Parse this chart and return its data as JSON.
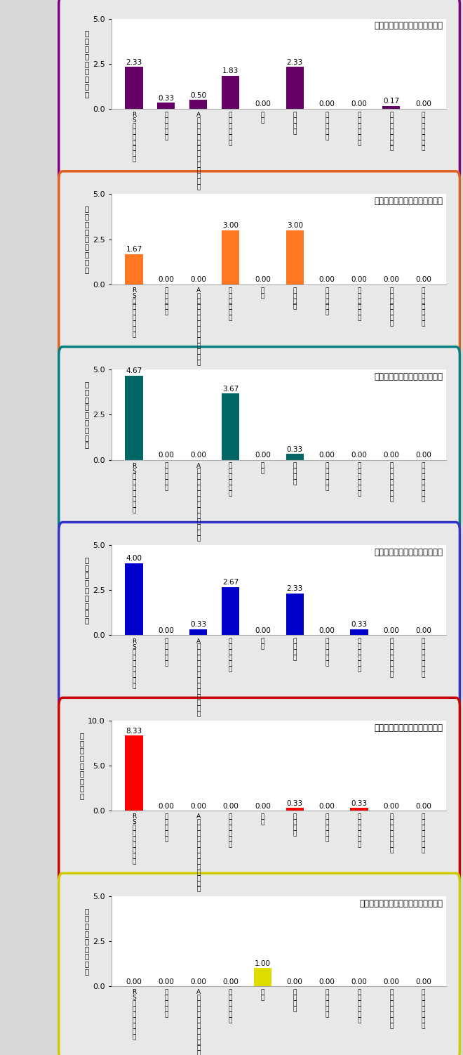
{
  "panels": [
    {
      "title": "北区の疾患別定点当たり報告数",
      "border_color": "#800080",
      "bar_color": "#660066",
      "ylim": 5.0,
      "yticks": [
        0.0,
        2.5,
        5.0
      ],
      "ytick_labels": [
        "0.0",
        "2.5",
        "5.0"
      ],
      "values": [
        2.33,
        0.33,
        0.5,
        1.83,
        0.0,
        2.33,
        0.0,
        0.0,
        0.17,
        0.0
      ]
    },
    {
      "title": "堺区の疾患別定点当たり報告数",
      "border_color": "#E06020",
      "bar_color": "#FF7722",
      "ylim": 5.0,
      "yticks": [
        0.0,
        2.5,
        5.0
      ],
      "ytick_labels": [
        "0.0",
        "2.5",
        "5.0"
      ],
      "values": [
        1.67,
        0.0,
        0.0,
        3.0,
        0.0,
        3.0,
        0.0,
        0.0,
        0.0,
        0.0
      ]
    },
    {
      "title": "西区の疾患別定点当たり報告数",
      "border_color": "#008080",
      "bar_color": "#006666",
      "ylim": 5.0,
      "yticks": [
        0.0,
        2.5,
        5.0
      ],
      "ytick_labels": [
        "0.0",
        "2.5",
        "5.0"
      ],
      "values": [
        4.67,
        0.0,
        0.0,
        3.67,
        0.0,
        0.33,
        0.0,
        0.0,
        0.0,
        0.0
      ]
    },
    {
      "title": "中区の疾患別定点当たり報告数",
      "border_color": "#3333CC",
      "bar_color": "#0000CC",
      "ylim": 5.0,
      "yticks": [
        0.0,
        2.5,
        5.0
      ],
      "ytick_labels": [
        "0.0",
        "2.5",
        "5.0"
      ],
      "values": [
        4.0,
        0.0,
        0.33,
        2.67,
        0.0,
        2.33,
        0.0,
        0.33,
        0.0,
        0.0
      ]
    },
    {
      "title": "南区の疾患別定点当たり報告数",
      "border_color": "#CC0000",
      "bar_color": "#FF0000",
      "ylim": 10.0,
      "yticks": [
        0.0,
        5.0,
        10.0
      ],
      "ytick_labels": [
        "0.0",
        "5.0",
        "10.0"
      ],
      "values": [
        8.33,
        0.0,
        0.0,
        0.0,
        0.0,
        0.33,
        0.0,
        0.33,
        0.0,
        0.0
      ]
    },
    {
      "title": "東・美原区の疾患別定点当たり報告数",
      "border_color": "#CCCC00",
      "bar_color": "#DDDD00",
      "ylim": 5.0,
      "yticks": [
        0.0,
        2.5,
        5.0
      ],
      "ytick_labels": [
        "0.0",
        "2.5",
        "5.0"
      ],
      "values": [
        0.0,
        0.0,
        0.0,
        0.0,
        1.0,
        0.0,
        0.0,
        0.0,
        0.0,
        0.0
      ]
    }
  ],
  "categories": [
    "R\nS\nウ\nイ\nル\nス\n感\n染\n症",
    "咽\n頭\n結\n膜\n熱",
    "A\n群\n溶\n血\n性\n球\n菌\n咽\n頭\n炎\n、\nレ\nン\nサ",
    "感\n染\n性\n胃\n腸\n炎",
    "水\n痘",
    "手\n足\n口\n病",
    "伝\n染\n性\n紅\n斑",
    "突\n発\n性\n発\nし\nん",
    "ヘ\nル\nパ\nン\nギ\nー\nナ",
    "流\n行\n性\n耳\n下\n腺\n炎"
  ],
  "ylabel_chars": [
    "定",
    "点",
    "当",
    "た",
    "り",
    "の",
    "報",
    "告",
    "数"
  ],
  "figure_bg": "#d8d8d8",
  "panel_bg": "#e8e8e8",
  "plot_bg": "#ffffff"
}
